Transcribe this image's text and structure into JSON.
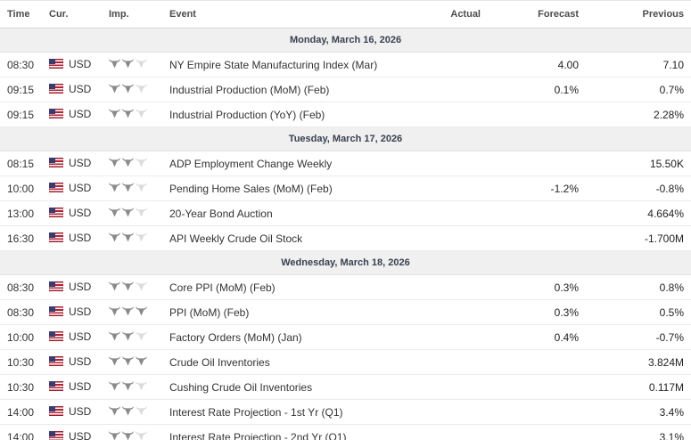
{
  "table": {
    "columns": [
      "Time",
      "Cur.",
      "Imp.",
      "Event",
      "Actual",
      "Forecast",
      "Previous"
    ],
    "max_importance": 3,
    "colors": {
      "importance_active": "#8a8a8a",
      "importance_inactive": "#dcdcdc",
      "date_row_bg": "#f0f0f1",
      "date_row_text": "#38414f",
      "row_border": "#ececec",
      "flag_red": "#b22234",
      "flag_blue": "#3c3b6e"
    },
    "sections": [
      {
        "date": "Monday, March 16, 2026",
        "rows": [
          {
            "time": "08:30",
            "currency": "USD",
            "importance": 2,
            "event": "NY Empire State Manufacturing Index (Mar)",
            "actual": "",
            "forecast": "4.00",
            "previous": "7.10"
          },
          {
            "time": "09:15",
            "currency": "USD",
            "importance": 2,
            "event": "Industrial Production (MoM) (Feb)",
            "actual": "",
            "forecast": "0.1%",
            "previous": "0.7%"
          },
          {
            "time": "09:15",
            "currency": "USD",
            "importance": 2,
            "event": "Industrial Production (YoY) (Feb)",
            "actual": "",
            "forecast": "",
            "previous": "2.28%"
          }
        ]
      },
      {
        "date": "Tuesday, March 17, 2026",
        "rows": [
          {
            "time": "08:15",
            "currency": "USD",
            "importance": 2,
            "event": "ADP Employment Change Weekly",
            "actual": "",
            "forecast": "",
            "previous": "15.50K"
          },
          {
            "time": "10:00",
            "currency": "USD",
            "importance": 2,
            "event": "Pending Home Sales (MoM) (Feb)",
            "actual": "",
            "forecast": "-1.2%",
            "previous": "-0.8%"
          },
          {
            "time": "13:00",
            "currency": "USD",
            "importance": 2,
            "event": "20-Year Bond Auction",
            "actual": "",
            "forecast": "",
            "previous": "4.664%"
          },
          {
            "time": "16:30",
            "currency": "USD",
            "importance": 2,
            "event": "API Weekly Crude Oil Stock",
            "actual": "",
            "forecast": "",
            "previous": "-1.700M"
          }
        ]
      },
      {
        "date": "Wednesday, March 18, 2026",
        "rows": [
          {
            "time": "08:30",
            "currency": "USD",
            "importance": 2,
            "event": "Core PPI (MoM) (Feb)",
            "actual": "",
            "forecast": "0.3%",
            "previous": "0.8%"
          },
          {
            "time": "08:30",
            "currency": "USD",
            "importance": 3,
            "event": "PPI (MoM) (Feb)",
            "actual": "",
            "forecast": "0.3%",
            "previous": "0.5%"
          },
          {
            "time": "10:00",
            "currency": "USD",
            "importance": 2,
            "event": "Factory Orders (MoM) (Jan)",
            "actual": "",
            "forecast": "0.4%",
            "previous": "-0.7%"
          },
          {
            "time": "10:30",
            "currency": "USD",
            "importance": 3,
            "event": "Crude Oil Inventories",
            "actual": "",
            "forecast": "",
            "previous": "3.824M"
          },
          {
            "time": "10:30",
            "currency": "USD",
            "importance": 2,
            "event": "Cushing Crude Oil Inventories",
            "actual": "",
            "forecast": "",
            "previous": "0.117M"
          },
          {
            "time": "14:00",
            "currency": "USD",
            "importance": 2,
            "event": "Interest Rate Projection - 1st Yr (Q1)",
            "actual": "",
            "forecast": "",
            "previous": "3.4%"
          },
          {
            "time": "14:00",
            "currency": "USD",
            "importance": 2,
            "event": "Interest Rate Projection - 2nd Yr (Q1)",
            "actual": "",
            "forecast": "",
            "previous": "3.1%"
          }
        ]
      }
    ]
  }
}
